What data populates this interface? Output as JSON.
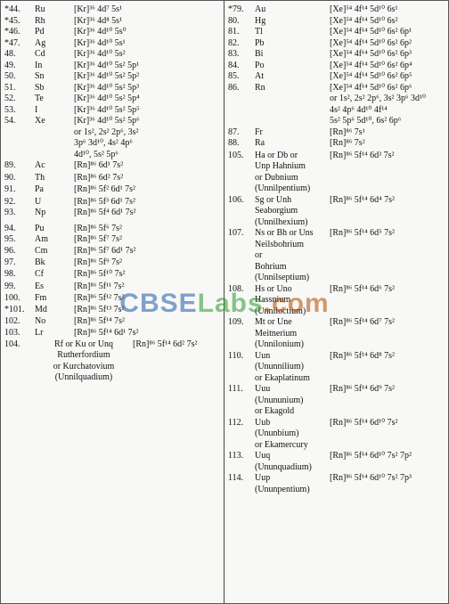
{
  "watermark": {
    "a": "CBSE",
    "b": "Labs",
    "c": ".com"
  },
  "left": [
    {
      "num": "*44.",
      "sym": "Ru",
      "conf": "[Kr]³⁶ 4d⁷ 5s¹"
    },
    {
      "num": "*45.",
      "sym": "Rh",
      "conf": "[Kr]³⁶ 4d⁸ 5s¹"
    },
    {
      "num": "*46.",
      "sym": "Pd",
      "conf": "[Kr]³⁶ 4d¹⁰ 5s⁰"
    },
    {
      "num": "*47.",
      "sym": "Ag",
      "conf": "[Kr]³⁶ 4d¹⁰ 5s¹"
    },
    {
      "num": "48.",
      "sym": "Cd",
      "conf": "[Kr]³⁶ 4d¹⁰ 5s²"
    },
    {
      "num": "49.",
      "sym": "In",
      "conf": "[Kr]³⁶ 4d¹⁰ 5s² 5p¹"
    },
    {
      "num": "50.",
      "sym": "Sn",
      "conf": "[Kr]³⁶ 4d¹⁰ 5s² 5p²"
    },
    {
      "num": "51.",
      "sym": "Sb",
      "conf": "[Kr]³⁶ 4d¹⁰ 5s² 5p³"
    },
    {
      "num": "52.",
      "sym": "Te",
      "conf": "[Kr]³⁶ 4d¹⁰ 5s² 5p⁴"
    },
    {
      "num": "53.",
      "sym": "I",
      "conf": "[Kr]³⁶ 4d¹⁰ 5s² 5p⁵"
    },
    {
      "num": "54.",
      "sym": "Xe",
      "conf": "[Kr]³⁶ 4d¹⁰ 5s² 5p⁶"
    },
    {
      "num": "",
      "sym": "",
      "conf": "or 1s², 2s² 2p⁶, 3s²"
    },
    {
      "num": "",
      "sym": "",
      "conf": "3p⁶ 3d¹⁰, 4s² 4p⁶"
    },
    {
      "num": "",
      "sym": "",
      "conf": "4d¹⁰, 5s² 5p⁶"
    },
    {
      "num": "89.",
      "sym": "Ac",
      "conf": "[Rn]⁸⁶ 6d¹ 7s²"
    },
    {
      "num": "",
      "sym": "",
      "conf": ""
    },
    {
      "num": "90.",
      "sym": "Th",
      "conf": "[Rn]⁸⁶ 6d² 7s²"
    },
    {
      "num": "",
      "sym": "",
      "conf": ""
    },
    {
      "num": "91.",
      "sym": "Pa",
      "conf": "[Rn]⁸⁶ 5f² 6d¹ 7s²"
    },
    {
      "num": "",
      "sym": "",
      "conf": ""
    },
    {
      "num": "92.",
      "sym": "U",
      "conf": "[Rn]⁸⁶ 5f³ 6d¹ 7s²"
    },
    {
      "num": "93.",
      "sym": "Np",
      "conf": "[Rn]⁸⁶ 5f⁴ 6d¹ 7s²"
    },
    {
      "num": "",
      "sym": "",
      "conf": ""
    },
    {
      "num": "",
      "sym": "",
      "conf": ""
    },
    {
      "num": "",
      "sym": "",
      "conf": ""
    },
    {
      "num": "",
      "sym": "",
      "conf": ""
    },
    {
      "num": "",
      "sym": "",
      "conf": ""
    },
    {
      "num": "94.",
      "sym": "Pu",
      "conf": "[Rn]⁸⁶ 5f⁶ 7s²"
    },
    {
      "num": "95.",
      "sym": "Am",
      "conf": "[Rn]⁸⁶ 5f⁷ 7s²"
    },
    {
      "num": "96.",
      "sym": "Cm",
      "conf": "[Rn]⁸⁶ 5f⁷ 6d¹ 7s²"
    },
    {
      "num": "",
      "sym": "",
      "conf": ""
    },
    {
      "num": "97.",
      "sym": "Bk",
      "conf": "[Rn]⁸⁶ 5f⁹ 7s²"
    },
    {
      "num": "98.",
      "sym": "Cf",
      "conf": "[Rn]⁸⁶ 5f¹⁰ 7s²"
    },
    {
      "num": "",
      "sym": "",
      "conf": ""
    },
    {
      "num": "",
      "sym": "",
      "conf": ""
    },
    {
      "num": "99.",
      "sym": "Es",
      "conf": "[Rn]⁸⁶ 5f¹¹ 7s²"
    },
    {
      "num": "100.",
      "sym": "Fm",
      "conf": "[Rn]⁸⁶ 5f¹² 7s²"
    },
    {
      "num": "",
      "sym": "",
      "conf": ""
    },
    {
      "num": "*101.",
      "sym": "Md",
      "conf": "[Rn]⁸⁶ 5f¹³ 7s²"
    },
    {
      "num": "102.",
      "sym": "No",
      "conf": "[Rn]⁸⁶ 5f¹⁴ 7s²"
    },
    {
      "num": "",
      "sym": "",
      "conf": ""
    },
    {
      "num": "103.",
      "sym": "Lr",
      "conf": "[Rn]⁸⁶ 5f¹⁴ 6d¹ 7s²"
    },
    {
      "num": "104.",
      "sym": "Rf or Ku or Unq",
      "conf": "[Rn]⁸⁶ 5f¹⁴ 6d² 7s²",
      "wide": true
    },
    {
      "num": "",
      "sym": "Rutherfordium",
      "conf": "",
      "wide": true
    },
    {
      "num": "",
      "sym": "or Kurchatovium",
      "conf": "",
      "wide": true
    },
    {
      "num": "",
      "sym": "(Unnilquadium)",
      "conf": "",
      "wide": true
    }
  ],
  "right": [
    {
      "num": "*79.",
      "sym": "Au",
      "conf": "[Xe]⁵⁴ 4f¹⁴ 5d¹⁰ 6s¹"
    },
    {
      "num": "80.",
      "sym": "Hg",
      "conf": "[Xe]⁵⁴ 4f¹⁴ 5d¹⁰ 6s²"
    },
    {
      "num": "81.",
      "sym": "Tl",
      "conf": "[Xe]⁵⁴ 4f¹⁴ 5d¹⁰ 6s² 6p¹"
    },
    {
      "num": "82.",
      "sym": "Pb",
      "conf": "[Xe]⁵⁴ 4f¹⁴ 5d¹⁰ 6s² 6p²"
    },
    {
      "num": "83.",
      "sym": "Bi",
      "conf": "[Xe]⁵⁴ 4f¹⁴ 5d¹⁰ 6s² 6p³"
    },
    {
      "num": "84.",
      "sym": "Po",
      "conf": "[Xe]⁵⁴ 4f¹⁴ 5d¹⁰ 6s² 6p⁴"
    },
    {
      "num": "85.",
      "sym": "At",
      "conf": "[Xe]⁵⁴ 4f¹⁴ 5d¹⁰ 6s² 6p⁵"
    },
    {
      "num": "86.",
      "sym": "Rn",
      "conf": "[Xe]⁵⁴ 4f¹⁴ 5d¹⁰ 6s² 6p⁶"
    },
    {
      "num": "",
      "sym": "",
      "conf": "or 1s², 2s² 2p⁶, 3s² 3p⁶ 3d¹⁰"
    },
    {
      "num": "",
      "sym": "",
      "conf": "4s² 4p⁶ 4d¹⁰ 4f¹⁴"
    },
    {
      "num": "",
      "sym": "",
      "conf": "5s² 5p⁶ 5d¹⁰, 6s² 6p⁶"
    },
    {
      "num": "87.",
      "sym": "Fr",
      "conf": "[Rn]⁸⁶ 7s¹"
    },
    {
      "num": "88.",
      "sym": "Ra",
      "conf": "[Rn]⁸⁶ 7s²"
    },
    {
      "num": "",
      "sym": "",
      "conf": ""
    },
    {
      "num": "105.",
      "sym": "Ha or Db or",
      "conf": "[Rn]⁸⁶ 5f¹⁴ 6d³ 7s²"
    },
    {
      "num": "",
      "sym": "Unp Hahnium",
      "conf": ""
    },
    {
      "num": "",
      "sym": "or Dubnium",
      "conf": ""
    },
    {
      "num": "",
      "sym": "(Unnilpentium)",
      "conf": ""
    },
    {
      "num": "106.",
      "sym": "Sg or Unh",
      "conf": "[Rn]⁸⁶ 5f¹⁴ 6d⁴ 7s²"
    },
    {
      "num": "",
      "sym": "Seaborgium",
      "conf": ""
    },
    {
      "num": "",
      "sym": "(Unnilhexium)",
      "conf": ""
    },
    {
      "num": "107.",
      "sym": "Ns or Bh or Uns",
      "conf": "[Rn]⁸⁶ 5f¹⁴ 6d⁵ 7s²"
    },
    {
      "num": "",
      "sym": "Neilsbohrium",
      "conf": ""
    },
    {
      "num": "",
      "sym": "or",
      "conf": ""
    },
    {
      "num": "",
      "sym": "Bohrium",
      "conf": ""
    },
    {
      "num": "",
      "sym": "(Unnilseptium)",
      "conf": ""
    },
    {
      "num": "108.",
      "sym": "Hs or Uno",
      "conf": "[Rn]⁸⁶ 5f¹⁴ 6d⁶ 7s²"
    },
    {
      "num": "",
      "sym": "Hassnium",
      "conf": ""
    },
    {
      "num": "",
      "sym": "(Unniloctium)",
      "conf": ""
    },
    {
      "num": "109.",
      "sym": "Mt or Une",
      "conf": "[Rn]⁸⁶ 5f¹⁴ 6d⁷ 7s²"
    },
    {
      "num": "",
      "sym": "Meitnerium",
      "conf": ""
    },
    {
      "num": "",
      "sym": "(Unnilonium)",
      "conf": ""
    },
    {
      "num": "110.",
      "sym": "Uun",
      "conf": "[Rn]⁸⁶ 5f¹⁴ 6d⁸ 7s²"
    },
    {
      "num": "",
      "sym": "(Ununnilium)",
      "conf": ""
    },
    {
      "num": "",
      "sym": "or Ekaplatinum",
      "conf": ""
    },
    {
      "num": "111.",
      "sym": "Uuu",
      "conf": "[Rn]⁸⁶ 5f¹⁴ 6d⁹ 7s²"
    },
    {
      "num": "",
      "sym": "(Unununium)",
      "conf": ""
    },
    {
      "num": "",
      "sym": "or Ekagold",
      "conf": ""
    },
    {
      "num": "112.",
      "sym": "Uub",
      "conf": "[Rn]⁸⁶ 5f¹⁴ 6d¹⁰ 7s²"
    },
    {
      "num": "",
      "sym": "(Ununbium)",
      "conf": ""
    },
    {
      "num": "",
      "sym": "or Ekamercury",
      "conf": ""
    },
    {
      "num": "113.",
      "sym": "Uuq",
      "conf": "[Rn]⁸⁶ 5f¹⁴ 6d¹⁰ 7s² 7p²"
    },
    {
      "num": "",
      "sym": "(Ununquadium)",
      "conf": ""
    },
    {
      "num": "114.",
      "sym": "Uup",
      "conf": "[Rn]⁸⁶ 5f¹⁴ 6d¹⁰ 7s² 7p³"
    },
    {
      "num": "",
      "sym": "(Ununpentium)",
      "conf": ""
    }
  ]
}
